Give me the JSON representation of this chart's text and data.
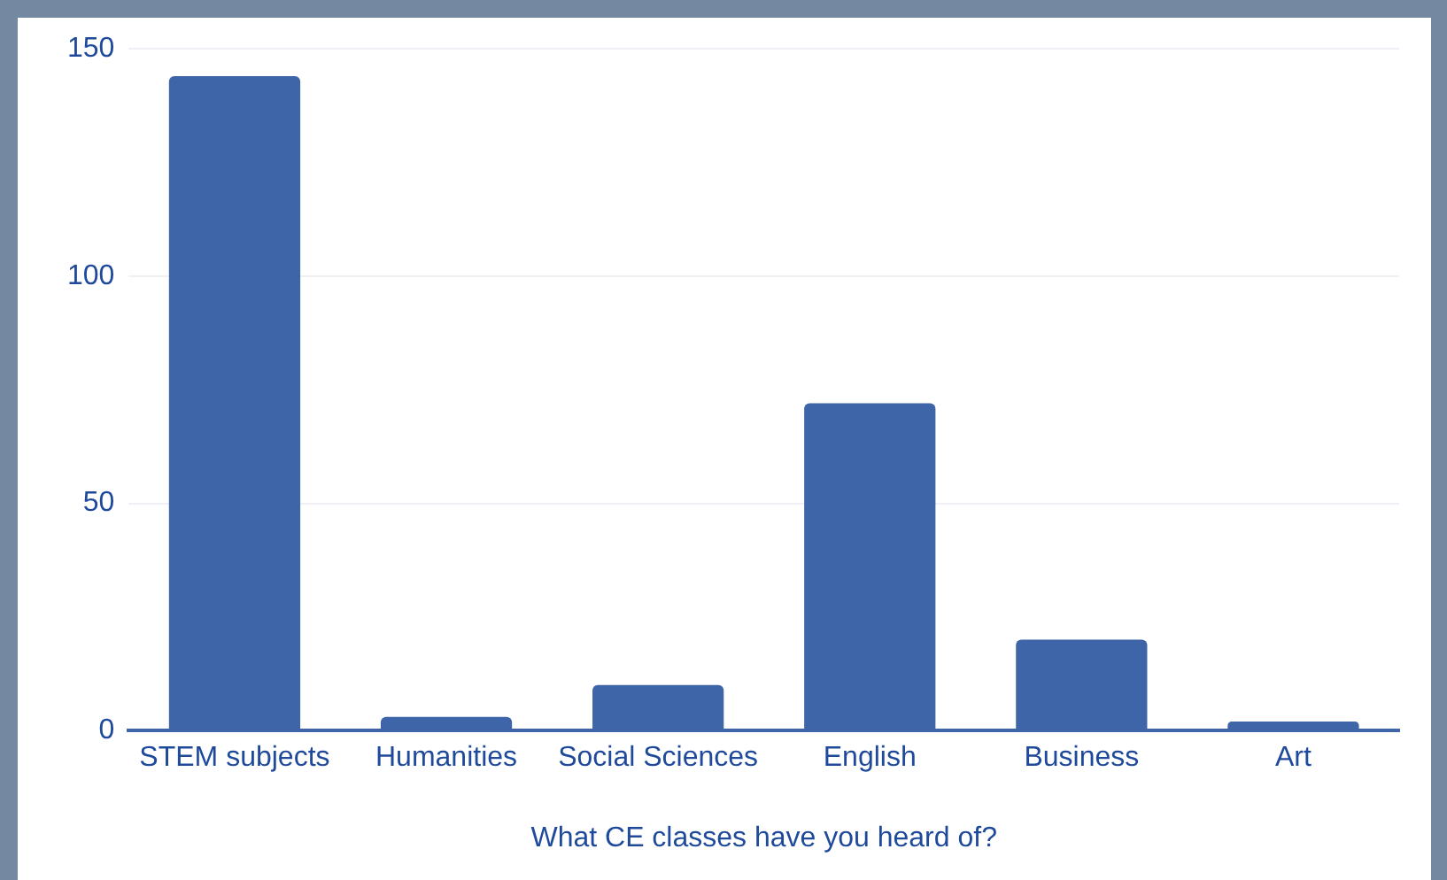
{
  "chart_data": {
    "type": "bar",
    "xlabel": "What CE classes have you heard of?",
    "categories": [
      "STEM subjects",
      "Humanities",
      "Social Sciences",
      "English",
      "Business",
      "Art"
    ],
    "values": [
      144,
      3,
      10,
      72,
      20,
      2
    ],
    "color": "#3f65a9",
    "ylim": [
      0,
      150
    ],
    "yticks": [
      0,
      50,
      100,
      150
    ],
    "grid": "y",
    "legend": false
  }
}
